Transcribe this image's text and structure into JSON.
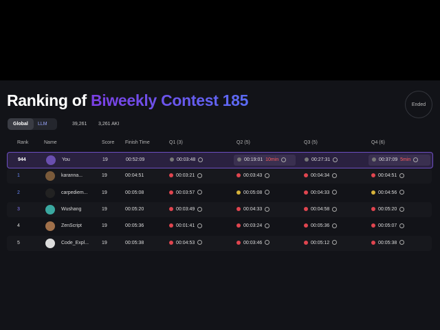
{
  "header": {
    "title_prefix": "Ranking of",
    "title_highlight": "Biweekly Contest 185",
    "status": "Ended"
  },
  "tabs": [
    "Global",
    "LLM"
  ],
  "stats": [
    "39,261",
    "3,261 AKI"
  ],
  "table": {
    "columns": [
      "Rank",
      "Name",
      "Score",
      "Finish Time",
      "Q1 (3)",
      "Q2 (5)",
      "Q3 (5)",
      "Q4 (6)"
    ],
    "rows": [
      {
        "rank": 944,
        "name": "You",
        "score": 19,
        "finish": "00:52:09",
        "q": [
          {
            "time": "00:03:48"
          },
          {
            "time": "00:19:01",
            "penalty": "10min"
          },
          {
            "time": "00:27:31"
          },
          {
            "time": "00:37:09",
            "penalty": "5min"
          }
        ]
      },
      {
        "rank": 1,
        "name": "karanna...",
        "score": 19,
        "finish": "00:04:51",
        "q": [
          {
            "time": "00:03:21"
          },
          {
            "time": "00:03:43"
          },
          {
            "time": "00:04:34"
          },
          {
            "time": "00:04:51"
          }
        ]
      },
      {
        "rank": 2,
        "name": "carpediem...",
        "score": 19,
        "finish": "00:05:08",
        "q": [
          {
            "time": "00:03:57"
          },
          {
            "time": "00:05:08"
          },
          {
            "time": "00:04:33"
          },
          {
            "time": "00:04:56"
          }
        ]
      },
      {
        "rank": 3,
        "name": "Wushang",
        "score": 19,
        "finish": "00:05:20",
        "q": [
          {
            "time": "00:03:49"
          },
          {
            "time": "00:04:33"
          },
          {
            "time": "00:04:58"
          },
          {
            "time": "00:05:20"
          }
        ]
      },
      {
        "rank": 4,
        "name": "ZenScript",
        "score": 19,
        "finish": "00:05:36",
        "q": [
          {
            "time": "00:01:41"
          },
          {
            "time": "00:03:24"
          },
          {
            "time": "00:05:36"
          },
          {
            "time": "00:05:07"
          }
        ]
      },
      {
        "rank": 5,
        "name": "Code_Expl...",
        "score": 19,
        "finish": "00:05:38",
        "q": [
          {
            "time": "00:04:53"
          },
          {
            "time": "00:03:46"
          },
          {
            "time": "00:05:12"
          },
          {
            "time": "00:05:38"
          }
        ]
      }
    ]
  }
}
